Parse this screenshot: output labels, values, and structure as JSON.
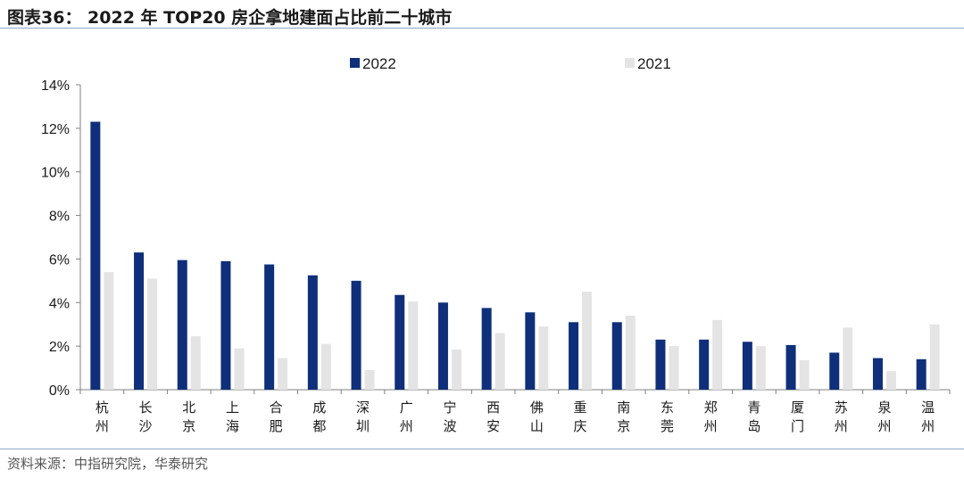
{
  "header": {
    "title": "图表36： 2022 年 TOP20 房企拿地建面占比前二十城市"
  },
  "footer": {
    "source": "资料来源：中指研究院，华泰研究"
  },
  "colors": {
    "series_2022": "#0f2f7a",
    "series_2021": "#e4e4e4",
    "axis": "#7f7f7f",
    "rule": "#8fa6c8"
  },
  "chart_data": {
    "type": "bar",
    "categories": [
      "杭州",
      "长沙",
      "北京",
      "上海",
      "合肥",
      "成都",
      "深圳",
      "广州",
      "宁波",
      "西安",
      "佛山",
      "重庆",
      "南京",
      "东莞",
      "郑州",
      "青岛",
      "厦门",
      "苏州",
      "泉州",
      "温州"
    ],
    "series": [
      {
        "name": "2022",
        "values": [
          12.3,
          6.3,
          5.95,
          5.9,
          5.75,
          5.25,
          5.0,
          4.35,
          4.0,
          3.75,
          3.55,
          3.1,
          3.1,
          2.3,
          2.3,
          2.2,
          2.05,
          1.7,
          1.45,
          1.4
        ]
      },
      {
        "name": "2021",
        "values": [
          5.4,
          5.1,
          2.45,
          1.9,
          1.45,
          2.1,
          0.9,
          4.05,
          1.85,
          2.6,
          2.9,
          4.5,
          3.4,
          2.0,
          3.2,
          2.0,
          1.35,
          2.85,
          0.85,
          3.0
        ]
      }
    ],
    "yticks": [
      "0%",
      "2%",
      "4%",
      "6%",
      "8%",
      "10%",
      "12%",
      "14%"
    ],
    "ylim": [
      0,
      14
    ],
    "legend_position": "top-center",
    "grid": false
  }
}
